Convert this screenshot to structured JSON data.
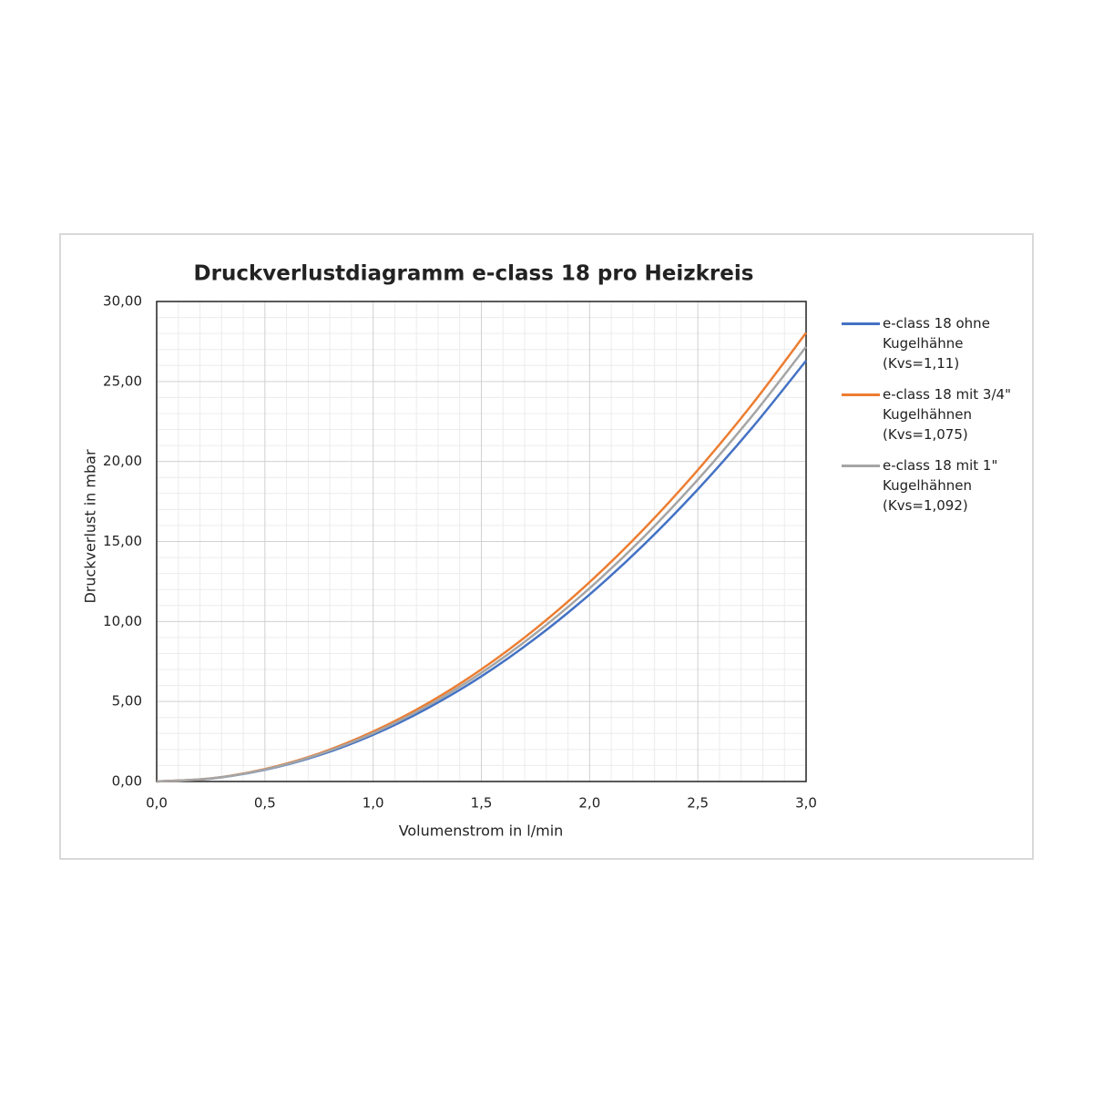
{
  "chart_data": {
    "type": "line",
    "title": "Druckverlustdiagramm e-class 18 pro Heizkreis",
    "x_label": "Volumenstrom in l/min",
    "y_label": "Druckverlust in mbar",
    "x": [
      0,
      0.25,
      0.5,
      0.75,
      1,
      1.25,
      1.5,
      1.75,
      2,
      2.25,
      2.5,
      2.75,
      3
    ],
    "series": [
      {
        "name": "e-class 18 ohne Kugelhähne (Kvs=1,11)",
        "color": "#4472c4",
        "values": [
          0,
          0.18,
          0.73,
          1.64,
          2.92,
          4.57,
          6.57,
          8.95,
          11.69,
          14.79,
          18.26,
          22.1,
          26.3
        ]
      },
      {
        "name": "e-class 18 mit 3/4\" Kugelhähnen (Kvs=1,075)",
        "color": "#ed7d31",
        "values": [
          0,
          0.19,
          0.78,
          1.75,
          3.12,
          4.87,
          7.01,
          9.54,
          12.46,
          15.77,
          19.47,
          23.56,
          28.04
        ]
      },
      {
        "name": "e-class 18 mit 1\" Kugelhähnen (Kvs=1,092)",
        "color": "#a5a5a5",
        "values": [
          0,
          0.19,
          0.75,
          1.7,
          3.02,
          4.72,
          6.79,
          9.25,
          12.08,
          15.28,
          18.87,
          22.83,
          27.17
        ]
      }
    ],
    "xlim": [
      0,
      3
    ],
    "xticks": [
      {
        "value": 0,
        "label": "0,0"
      },
      {
        "value": 0.5,
        "label": "0,5"
      },
      {
        "value": 1,
        "label": "1,0"
      },
      {
        "value": 1.5,
        "label": "1,5"
      },
      {
        "value": 2,
        "label": "2,0"
      },
      {
        "value": 2.5,
        "label": "2,5"
      },
      {
        "value": 3,
        "label": "3,0"
      }
    ],
    "ylim": [
      0,
      30
    ],
    "yticks": [
      {
        "value": 0,
        "label": "0,00"
      },
      {
        "value": 5,
        "label": "5,00"
      },
      {
        "value": 10,
        "label": "10,00"
      },
      {
        "value": 15,
        "label": "15,00"
      },
      {
        "value": 20,
        "label": "20,00"
      },
      {
        "value": 25,
        "label": "25,00"
      },
      {
        "value": 30,
        "label": "30,00"
      }
    ],
    "grid": true,
    "minor_grid": true,
    "legend": "right"
  }
}
